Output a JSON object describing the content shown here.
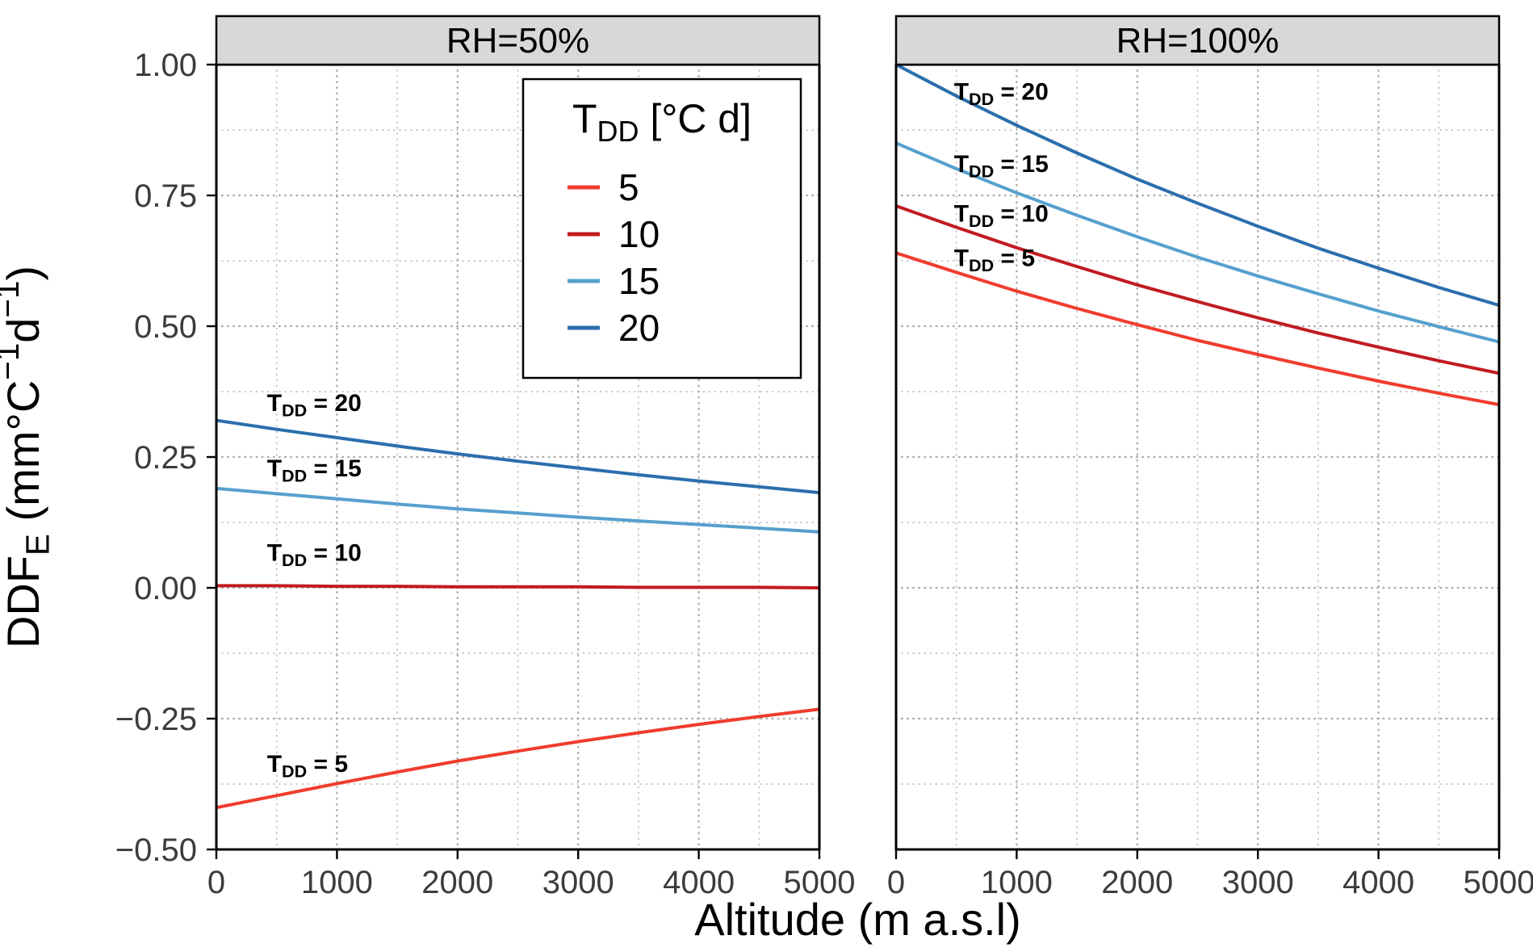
{
  "window": {
    "background": "#FFFFFF"
  },
  "chart_data": {
    "type": "line",
    "title": "",
    "xlabel": "Altitude (m a.s.l)",
    "ylabel_plain": "DDF_E (mm °C^-1 d^-1)",
    "ylabel_parts": [
      {
        "t": "DDF"
      },
      {
        "t": "E",
        "style": "sub"
      },
      {
        "t": " (mm°C"
      },
      {
        "t": "−1",
        "style": "sup"
      },
      {
        "t": "d"
      },
      {
        "t": "−1",
        "style": "sup"
      },
      {
        "t": ")"
      }
    ],
    "xlim": [
      0,
      5000
    ],
    "ylim": [
      -0.5,
      1.0
    ],
    "x_ticks": [
      0,
      1000,
      2000,
      3000,
      4000,
      5000
    ],
    "x_tick_labels": [
      "0",
      "1000",
      "2000",
      "3000",
      "4000",
      "5000"
    ],
    "x_minor_ticks": [
      500,
      1500,
      2500,
      3500,
      4500
    ],
    "y_ticks": [
      -0.5,
      -0.25,
      0,
      0.25,
      0.5,
      0.75,
      1
    ],
    "y_tick_labels": [
      "−0.50",
      "−0.25",
      "0.00",
      "0.25",
      "0.50",
      "0.75",
      "1.00"
    ],
    "y_minor_ticks": [
      -0.375,
      -0.125,
      0.125,
      0.375,
      0.625,
      0.875
    ],
    "grid": "dotted",
    "x": [
      0,
      500,
      1000,
      1500,
      2000,
      2500,
      3000,
      3500,
      4000,
      4500,
      5000
    ],
    "series_meta": [
      {
        "id": "tdd5",
        "label": "5",
        "color": "#F03C2E"
      },
      {
        "id": "tdd10",
        "label": "10",
        "color": "#C11B21"
      },
      {
        "id": "tdd15",
        "label": "15",
        "color": "#56A0CE"
      },
      {
        "id": "tdd20",
        "label": "20",
        "color": "#2B6EAD"
      }
    ],
    "panels": [
      {
        "facet_label": "RH=50%",
        "series": {
          "tdd5": [
            -0.42,
            -0.397,
            -0.374,
            -0.352,
            -0.331,
            -0.312,
            -0.294,
            -0.277,
            -0.261,
            -0.246,
            -0.232
          ],
          "tdd10": [
            0.004,
            0.004,
            0.003,
            0.003,
            0.002,
            0.002,
            0.002,
            0.001,
            0.001,
            0.001,
            0.0
          ],
          "tdd15": [
            0.19,
            0.18,
            0.17,
            0.16,
            0.151,
            0.143,
            0.135,
            0.128,
            0.121,
            0.114,
            0.107
          ],
          "tdd20": [
            0.32,
            0.303,
            0.287,
            0.271,
            0.256,
            0.242,
            0.229,
            0.216,
            0.204,
            0.193,
            0.182
          ]
        },
        "curve_labels": [
          {
            "series": "tdd20",
            "pre": "T",
            "sub": "DD",
            "post": " = 20",
            "x": 420,
            "y": 0.338
          },
          {
            "series": "tdd15",
            "pre": "T",
            "sub": "DD",
            "post": " = 15",
            "x": 420,
            "y": 0.213
          },
          {
            "series": "tdd10",
            "pre": "T",
            "sub": "DD",
            "post": " = 10",
            "x": 420,
            "y": 0.052
          },
          {
            "series": "tdd5",
            "pre": "T",
            "sub": "DD",
            "post": " = 5",
            "x": 420,
            "y": -0.352
          }
        ]
      },
      {
        "facet_label": "RH=100%",
        "series": {
          "tdd5": [
            0.64,
            0.603,
            0.567,
            0.534,
            0.503,
            0.473,
            0.446,
            0.42,
            0.395,
            0.372,
            0.35
          ],
          "tdd10": [
            0.73,
            0.689,
            0.65,
            0.614,
            0.579,
            0.547,
            0.516,
            0.487,
            0.46,
            0.434,
            0.41
          ],
          "tdd15": [
            0.85,
            0.801,
            0.755,
            0.712,
            0.671,
            0.632,
            0.596,
            0.562,
            0.529,
            0.499,
            0.47
          ],
          "tdd20": [
            1.0,
            0.94,
            0.884,
            0.831,
            0.781,
            0.735,
            0.691,
            0.649,
            0.611,
            0.574,
            0.54
          ]
        },
        "curve_labels": [
          {
            "series": "tdd20",
            "pre": "T",
            "sub": "DD",
            "post": " = 20",
            "x": 480,
            "y": 0.933
          },
          {
            "series": "tdd15",
            "pre": "T",
            "sub": "DD",
            "post": " = 15",
            "x": 480,
            "y": 0.795
          },
          {
            "series": "tdd10",
            "pre": "T",
            "sub": "DD",
            "post": " = 10",
            "x": 480,
            "y": 0.7
          },
          {
            "series": "tdd5",
            "pre": "T",
            "sub": "DD",
            "post": " = 5",
            "x": 480,
            "y": 0.615
          }
        ]
      }
    ],
    "legend": {
      "position": "inside-top-right-of-left-panel",
      "title_parts": [
        {
          "t": "T"
        },
        {
          "t": "DD",
          "style": "sub"
        },
        {
          "t": " [°C d]"
        }
      ],
      "entries": [
        {
          "label": "5",
          "color": "#F03C2E"
        },
        {
          "label": "10",
          "color": "#C11B21"
        },
        {
          "label": "15",
          "color": "#56A0CE"
        },
        {
          "label": "20",
          "color": "#2B6EAD"
        }
      ]
    },
    "style": {
      "strip_bg": "#D8D8D8",
      "strip_border": "#000000",
      "strip_text": "#000000",
      "panel_bg": "#FFFFFF",
      "panel_border": "#000000",
      "grid_major": "#ABABAB",
      "grid_minor": "#C6C6C6",
      "tick_color": "#000000",
      "tick_label_color": "#3C3C3C",
      "axis_title_color": "#000000",
      "curve_label_color": "#000000",
      "legend_bg": "#FFFFFF",
      "legend_border": "#000000",
      "legend_text": "#000000"
    }
  }
}
